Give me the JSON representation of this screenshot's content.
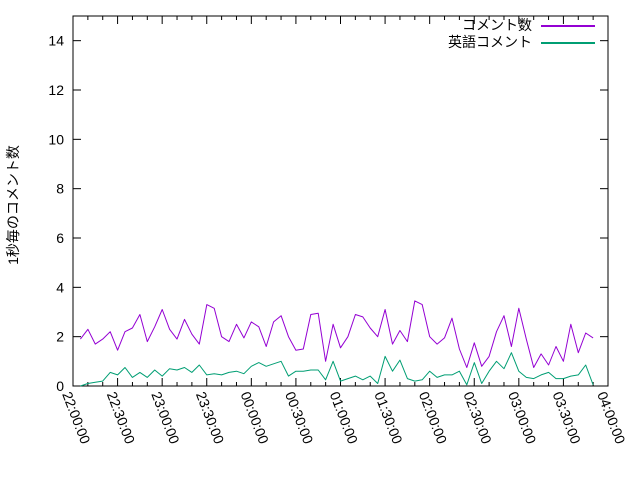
{
  "chart_data": {
    "type": "line",
    "title": "",
    "xlabel": "",
    "ylabel": "1秒毎のコメント数",
    "ylim": [
      0,
      15
    ],
    "y_ticks": [
      0,
      2,
      4,
      6,
      8,
      10,
      12,
      14
    ],
    "x_ticks": [
      "22:00:00",
      "22:30:00",
      "23:00:00",
      "23:30:00",
      "00:00:00",
      "00:30:00",
      "01:00:00",
      "01:30:00",
      "02:00:00",
      "02:30:00",
      "03:00:00",
      "03:30:00",
      "04:00:00"
    ],
    "x_minor_tick_minutes": 10,
    "x_range_minutes": 360,
    "grid": false,
    "legend_position": "top-right",
    "border_color": "#000000",
    "background_color": "#ffffff",
    "series": [
      {
        "name": "コメント数",
        "key": "comments",
        "color": "#9400d3",
        "start": "22:05:00",
        "step_min": 5,
        "values": [
          1.9,
          2.3,
          1.7,
          1.9,
          2.2,
          1.45,
          2.2,
          2.35,
          2.9,
          1.8,
          2.4,
          3.1,
          2.3,
          1.9,
          2.7,
          2.1,
          1.7,
          3.3,
          3.15,
          2.0,
          1.8,
          2.5,
          1.95,
          2.6,
          2.4,
          1.6,
          2.6,
          2.85,
          2.0,
          1.45,
          1.5,
          2.9,
          2.95,
          1.0,
          2.5,
          1.55,
          2.0,
          2.9,
          2.8,
          2.35,
          2.0,
          3.1,
          1.7,
          2.25,
          1.8,
          3.45,
          3.3,
          2.0,
          1.7,
          1.95,
          2.75,
          1.5,
          0.75,
          1.75,
          0.8,
          1.2,
          2.2,
          2.85,
          1.6,
          3.15,
          1.9,
          0.75,
          1.3,
          0.85,
          1.6,
          1.0,
          2.5,
          1.35,
          2.15,
          1.95
        ]
      },
      {
        "name": "英語コメント",
        "key": "english-comments",
        "color": "#009e73",
        "start": "22:05:00",
        "step_min": 5,
        "values": [
          0.0,
          0.1,
          0.15,
          0.2,
          0.55,
          0.45,
          0.75,
          0.35,
          0.55,
          0.35,
          0.65,
          0.4,
          0.7,
          0.65,
          0.75,
          0.55,
          0.85,
          0.45,
          0.5,
          0.45,
          0.55,
          0.6,
          0.5,
          0.8,
          0.95,
          0.8,
          0.9,
          1.0,
          0.4,
          0.6,
          0.6,
          0.65,
          0.65,
          0.25,
          1.0,
          0.2,
          0.3,
          0.4,
          0.25,
          0.4,
          0.1,
          1.2,
          0.6,
          1.05,
          0.3,
          0.2,
          0.25,
          0.6,
          0.35,
          0.45,
          0.45,
          0.6,
          0.05,
          0.95,
          0.1,
          0.6,
          1.0,
          0.7,
          1.35,
          0.6,
          0.35,
          0.3,
          0.45,
          0.55,
          0.3,
          0.3,
          0.4,
          0.45,
          0.85,
          0.05
        ]
      }
    ]
  }
}
